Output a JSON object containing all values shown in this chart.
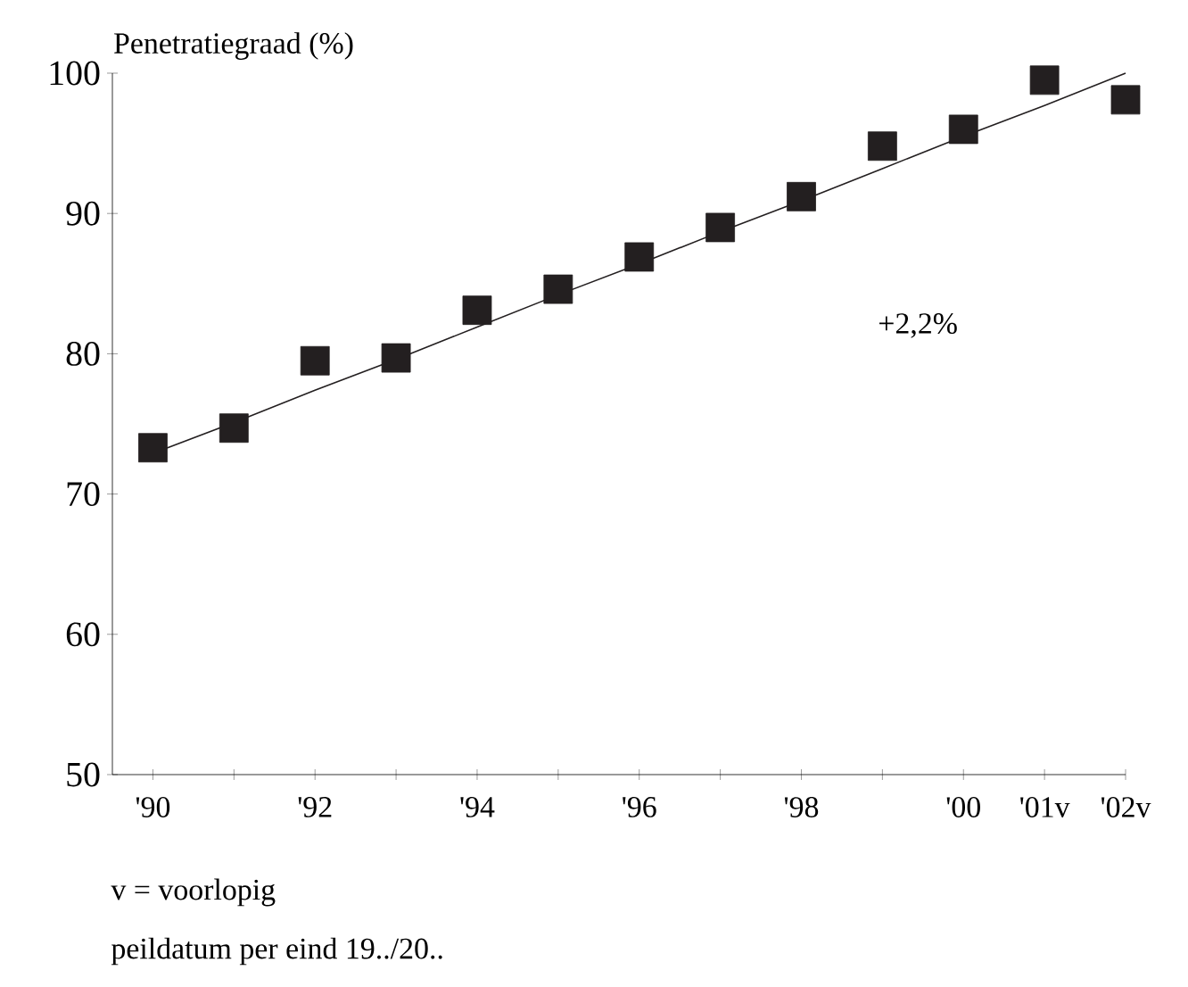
{
  "chart_data": {
    "type": "scatter",
    "ylabel": "Penetratiegraad (%)",
    "categories": [
      "'90",
      null,
      "'92",
      null,
      "'94",
      null,
      "'96",
      null,
      "'98",
      null,
      "'00",
      "'01v",
      "'02v"
    ],
    "series": [
      {
        "color": "#231f20",
        "values": [
          73.3,
          74.7,
          79.5,
          79.7,
          83.1,
          84.6,
          86.9,
          89.0,
          91.2,
          94.8,
          96.0,
          99.5,
          98.1
        ]
      },
      {
        "type": "line",
        "color": "#231f20",
        "marker": "none",
        "values": [
          72.9,
          75.1,
          77.4,
          79.6,
          81.9,
          84.2,
          86.4,
          88.7,
          90.9,
          93.2,
          95.5,
          97.7,
          100.0
        ]
      }
    ],
    "marker": "square",
    "ylim": [
      50,
      100
    ],
    "yticks": [
      50,
      60,
      70,
      80,
      90,
      100
    ],
    "annotations": [
      "+2,2%",
      "v = voorlopig",
      "peildatum per eind 19../20.."
    ]
  }
}
